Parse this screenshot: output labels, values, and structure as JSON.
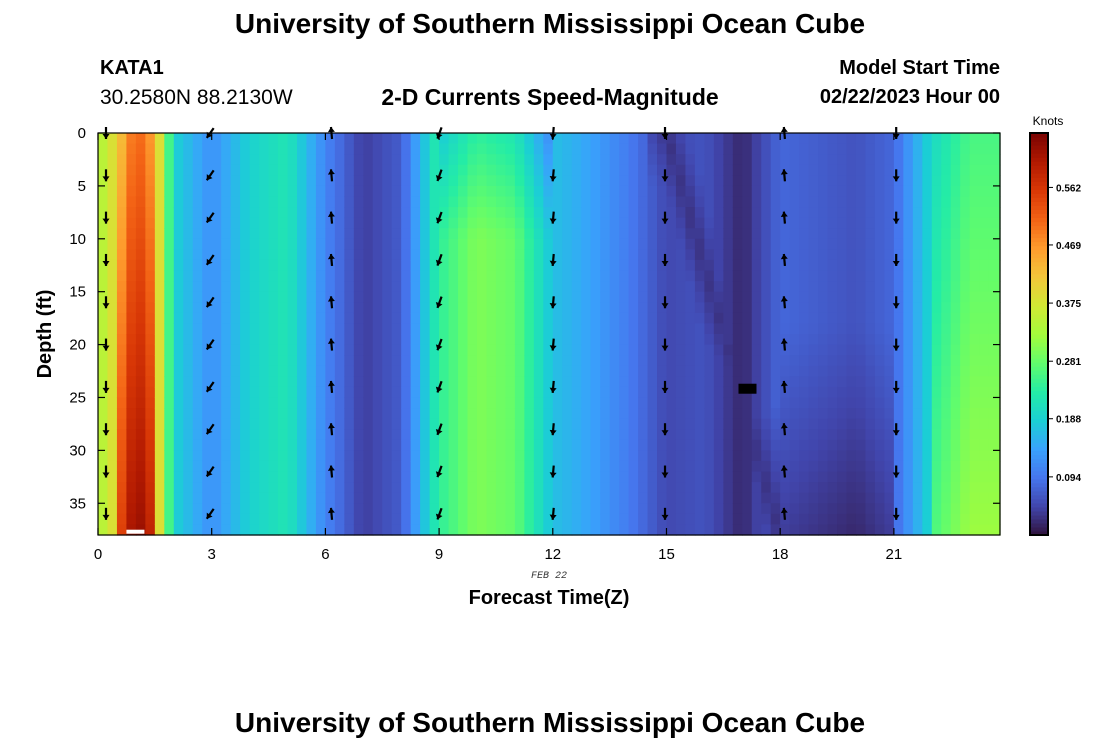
{
  "page": {
    "title": "University of Southern Mississippi Ocean Cube",
    "footer_title": "University of Southern Mississippi Ocean Cube"
  },
  "header": {
    "station_id": "KATA1",
    "coordinates": "30.2580N  88.2130W",
    "plot_title": "2-D Currents Speed-Magnitude",
    "model_start_label": "Model Start Time",
    "model_start_value": "02/22/2023 Hour 00"
  },
  "colors": {
    "colormap": [
      "#30123b",
      "#4145ab",
      "#4675ed",
      "#39a2fc",
      "#1bcfd4",
      "#24eca6",
      "#61fc6c",
      "#a4fc3b",
      "#d1e834",
      "#f3c63a",
      "#fe9b2d",
      "#f36315",
      "#d93806",
      "#b11901",
      "#7a0402"
    ],
    "arrow": "#000000",
    "missing_cell": "#000000"
  },
  "chart_data": {
    "type": "heatmap",
    "title": "2-D Currents Speed-Magnitude",
    "xlabel": "Forecast Time(Z)",
    "ylabel": "Depth (ft)",
    "x_date_label": "FEB 22",
    "xlim": [
      0,
      23.8
    ],
    "ylim": [
      0,
      38
    ],
    "y_inverted": true,
    "x_ticks": [
      0,
      3,
      6,
      9,
      12,
      15,
      18,
      21
    ],
    "y_ticks": [
      0,
      5,
      10,
      15,
      20,
      25,
      30,
      35
    ],
    "colorbar": {
      "label": "Knots",
      "min": 0,
      "max": 0.65,
      "ticks": [
        0.094,
        0.188,
        0.281,
        0.375,
        0.469,
        0.562
      ]
    },
    "hours": [
      0,
      1,
      2,
      3,
      4,
      5,
      6,
      7,
      8,
      9,
      10,
      11,
      12,
      13,
      14,
      15,
      16,
      17,
      18,
      19,
      20,
      21,
      22,
      23
    ],
    "depth_levels_ft": [
      0,
      4,
      8,
      12,
      16,
      20,
      24,
      28,
      32,
      36
    ],
    "speed_profile_knots": [
      {
        "hour": 0,
        "speed": 0.33,
        "direction_deg": 270
      },
      {
        "hour": 0.5,
        "speed": 0.4,
        "direction_deg": 270
      },
      {
        "hour": 1,
        "speed": 0.52,
        "direction_deg": 270
      },
      {
        "hour": 1.5,
        "speed": 0.45,
        "direction_deg": 270
      },
      {
        "hour": 2,
        "speed": 0.19,
        "direction_deg": 270
      },
      {
        "hour": 3,
        "speed": 0.12,
        "direction_deg": 235
      },
      {
        "hour": 4,
        "speed": 0.19,
        "direction_deg": 240
      },
      {
        "hour": 5,
        "speed": 0.22,
        "direction_deg": 250
      },
      {
        "hour": 6,
        "speed": 0.11,
        "direction_deg": 95
      },
      {
        "hour": 7,
        "speed": 0.04,
        "direction_deg": 100
      },
      {
        "hour": 8,
        "speed": 0.07,
        "direction_deg": 270
      },
      {
        "hour": 9,
        "speed": 0.24,
        "direction_deg": 250
      },
      {
        "hour": 10,
        "speed": 0.3,
        "direction_deg": 260
      },
      {
        "hour": 11,
        "speed": 0.28,
        "direction_deg": 265
      },
      {
        "hour": 12,
        "speed": 0.17,
        "direction_deg": 265
      },
      {
        "hour": 13,
        "speed": 0.14,
        "direction_deg": 270
      },
      {
        "hour": 14,
        "speed": 0.1,
        "direction_deg": 270
      },
      {
        "hour": 15,
        "speed": 0.05,
        "direction_deg": 270
      },
      {
        "hour": 16,
        "speed": 0.06,
        "direction_deg": 90
      },
      {
        "hour": 17,
        "speed": 0.02,
        "direction_deg": 90
      },
      {
        "hour": 18,
        "speed": 0.08,
        "direction_deg": 95
      },
      {
        "hour": 19,
        "speed": 0.07,
        "direction_deg": 100
      },
      {
        "hour": 20,
        "speed": 0.06,
        "direction_deg": 90
      },
      {
        "hour": 21,
        "speed": 0.08,
        "direction_deg": 270
      },
      {
        "hour": 22,
        "speed": 0.2,
        "direction_deg": 270
      },
      {
        "hour": 23,
        "speed": 0.26,
        "direction_deg": 270
      }
    ]
  }
}
